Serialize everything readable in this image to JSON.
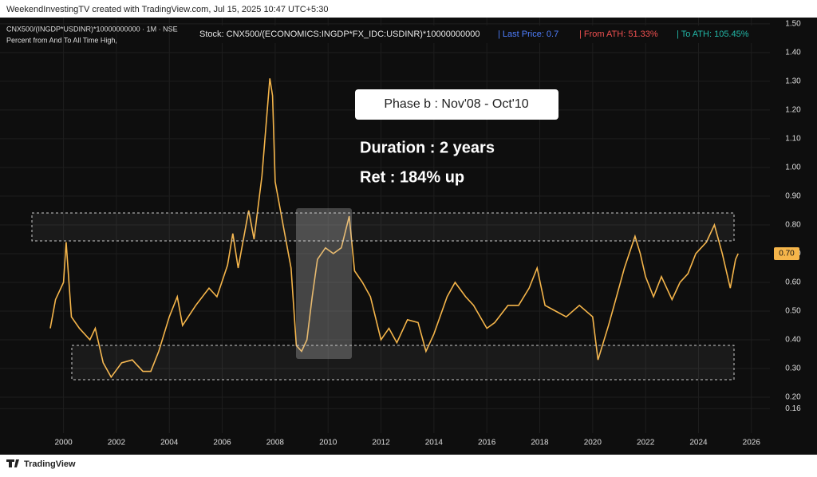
{
  "header": "WeekendInvestingTV created with TradingView.com, Jul 15, 2025 10:47 UTC+5:30",
  "footer": "TradingView",
  "chart_data": {
    "type": "line",
    "title": "CNX500/(INGDP*USDINR)*10000000000 · 1M · NSE",
    "subtitle": "Percent from And To All Time High,",
    "info": {
      "stock": "Stock: CNX500/(ECONOMICS:INGDP*FX_IDC:USDINR)*10000000000",
      "last_price": "| Last Price: 0.7",
      "from_ath": "| From ATH: 51.33%",
      "to_ath": "| To ATH: 105.45%"
    },
    "annotations": [
      "Phase b : Nov'08 - Oct'10",
      "Duration : 2 years",
      "Ret : 184% up"
    ],
    "price_badge": {
      "value": 0.7,
      "label": "0.70"
    },
    "xlim": [
      1997.6,
      2026.7
    ],
    "ylim": [
      0.075,
      1.533
    ],
    "xticks": [
      2000,
      2002,
      2004,
      2006,
      2008,
      2010,
      2012,
      2014,
      2016,
      2018,
      2020,
      2022,
      2024,
      2026
    ],
    "yticks": [
      {
        "value": 0.16,
        "label": "0.16"
      },
      {
        "value": 0.2,
        "label": "0.20"
      },
      {
        "value": 0.3,
        "label": "0.30"
      },
      {
        "value": 0.4,
        "label": "0.40"
      },
      {
        "value": 0.5,
        "label": "0.50"
      },
      {
        "value": 0.6,
        "label": "0.60"
      },
      {
        "value": 0.7,
        "label": "0.70"
      },
      {
        "value": 0.8,
        "label": "0.80"
      },
      {
        "value": 0.9,
        "label": "0.90"
      },
      {
        "value": 1.0,
        "label": "1.00"
      },
      {
        "value": 1.1,
        "label": "1.10"
      },
      {
        "value": 1.2,
        "label": "1.20"
      },
      {
        "value": 1.3,
        "label": "1.30"
      },
      {
        "value": 1.4,
        "label": "1.40"
      },
      {
        "value": 1.5,
        "label": "1.50"
      }
    ],
    "grid": true,
    "series": [
      {
        "color": "#f5b54a",
        "x": [
          1999.5,
          1999.7,
          2000.0,
          2000.1,
          2000.3,
          2000.6,
          2001.0,
          2001.2,
          2001.5,
          2001.8,
          2002.2,
          2002.6,
          2003.0,
          2003.3,
          2003.6,
          2004.0,
          2004.3,
          2004.5,
          2005.0,
          2005.5,
          2005.8,
          2006.2,
          2006.4,
          2006.6,
          2007.0,
          2007.2,
          2007.5,
          2007.8,
          2007.9,
          2008.0,
          2008.3,
          2008.6,
          2008.8,
          2009.0,
          2009.2,
          2009.4,
          2009.6,
          2009.9,
          2010.2,
          2010.5,
          2010.8,
          2011.0,
          2011.3,
          2011.6,
          2012.0,
          2012.3,
          2012.6,
          2013.0,
          2013.4,
          2013.7,
          2014.0,
          2014.5,
          2014.8,
          2015.2,
          2015.5,
          2016.0,
          2016.3,
          2016.8,
          2017.2,
          2017.6,
          2017.9,
          2018.2,
          2018.6,
          2019.0,
          2019.5,
          2020.0,
          2020.2,
          2020.6,
          2020.9,
          2021.2,
          2021.6,
          2021.8,
          2022.0,
          2022.3,
          2022.6,
          2023.0,
          2023.3,
          2023.6,
          2023.9,
          2024.3,
          2024.6,
          2024.9,
          2025.2,
          2025.4,
          2025.5
        ],
        "values": [
          0.44,
          0.54,
          0.6,
          0.74,
          0.48,
          0.44,
          0.4,
          0.44,
          0.32,
          0.27,
          0.32,
          0.33,
          0.29,
          0.29,
          0.36,
          0.48,
          0.55,
          0.45,
          0.52,
          0.58,
          0.55,
          0.66,
          0.77,
          0.65,
          0.85,
          0.75,
          0.97,
          1.31,
          1.25,
          0.95,
          0.8,
          0.65,
          0.38,
          0.36,
          0.4,
          0.55,
          0.68,
          0.72,
          0.7,
          0.72,
          0.83,
          0.64,
          0.6,
          0.55,
          0.4,
          0.44,
          0.39,
          0.47,
          0.46,
          0.36,
          0.42,
          0.55,
          0.6,
          0.55,
          0.52,
          0.44,
          0.46,
          0.52,
          0.52,
          0.58,
          0.65,
          0.52,
          0.5,
          0.48,
          0.52,
          0.48,
          0.33,
          0.45,
          0.55,
          0.65,
          0.76,
          0.7,
          0.62,
          0.55,
          0.62,
          0.54,
          0.6,
          0.63,
          0.7,
          0.74,
          0.8,
          0.7,
          0.58,
          0.68,
          0.7
        ]
      }
    ]
  }
}
